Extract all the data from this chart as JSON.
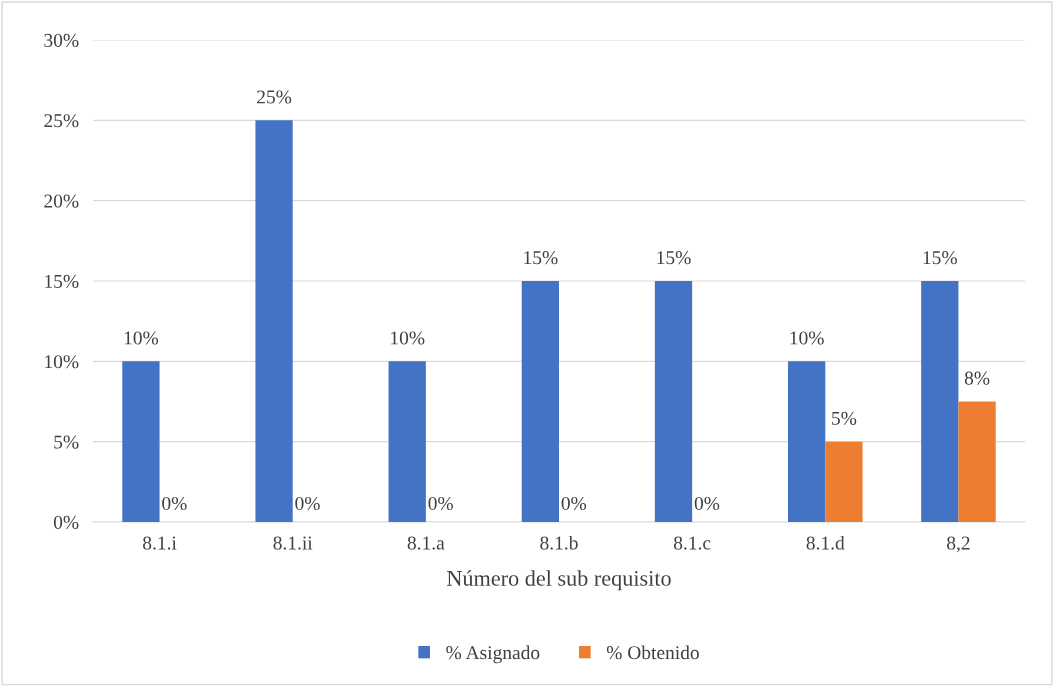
{
  "chart_data": {
    "type": "bar",
    "xlabel": "Número del sub requisito",
    "categories": [
      "8.1.i",
      "8.1.ii",
      "8.1.a",
      "8.1.b",
      "8.1.c",
      "8.1.d",
      "8,2"
    ],
    "series": [
      {
        "name": "% Asignado",
        "color": "#4472c4",
        "values": [
          10,
          25,
          10,
          15,
          15,
          10,
          15
        ],
        "value_labels": [
          "10%",
          "25%",
          "10%",
          "15%",
          "15%",
          "10%",
          "15%"
        ]
      },
      {
        "name": "% Obtenido",
        "color": "#ed7d31",
        "values": [
          0,
          0,
          0,
          0,
          0,
          5,
          7.5
        ],
        "value_labels": [
          "0%",
          "0%",
          "0%",
          "0%",
          "0%",
          "5%",
          "8%"
        ]
      }
    ],
    "ylim": [
      0,
      30
    ],
    "yticks": [
      {
        "value": 0,
        "label": "0%"
      },
      {
        "value": 5,
        "label": "5%"
      },
      {
        "value": 10,
        "label": "10%"
      },
      {
        "value": 15,
        "label": "15%"
      },
      {
        "value": 20,
        "label": "20%"
      },
      {
        "value": 25,
        "label": "25%"
      },
      {
        "value": 30,
        "label": "30%"
      }
    ],
    "grid": "y",
    "legend": "bottom"
  }
}
